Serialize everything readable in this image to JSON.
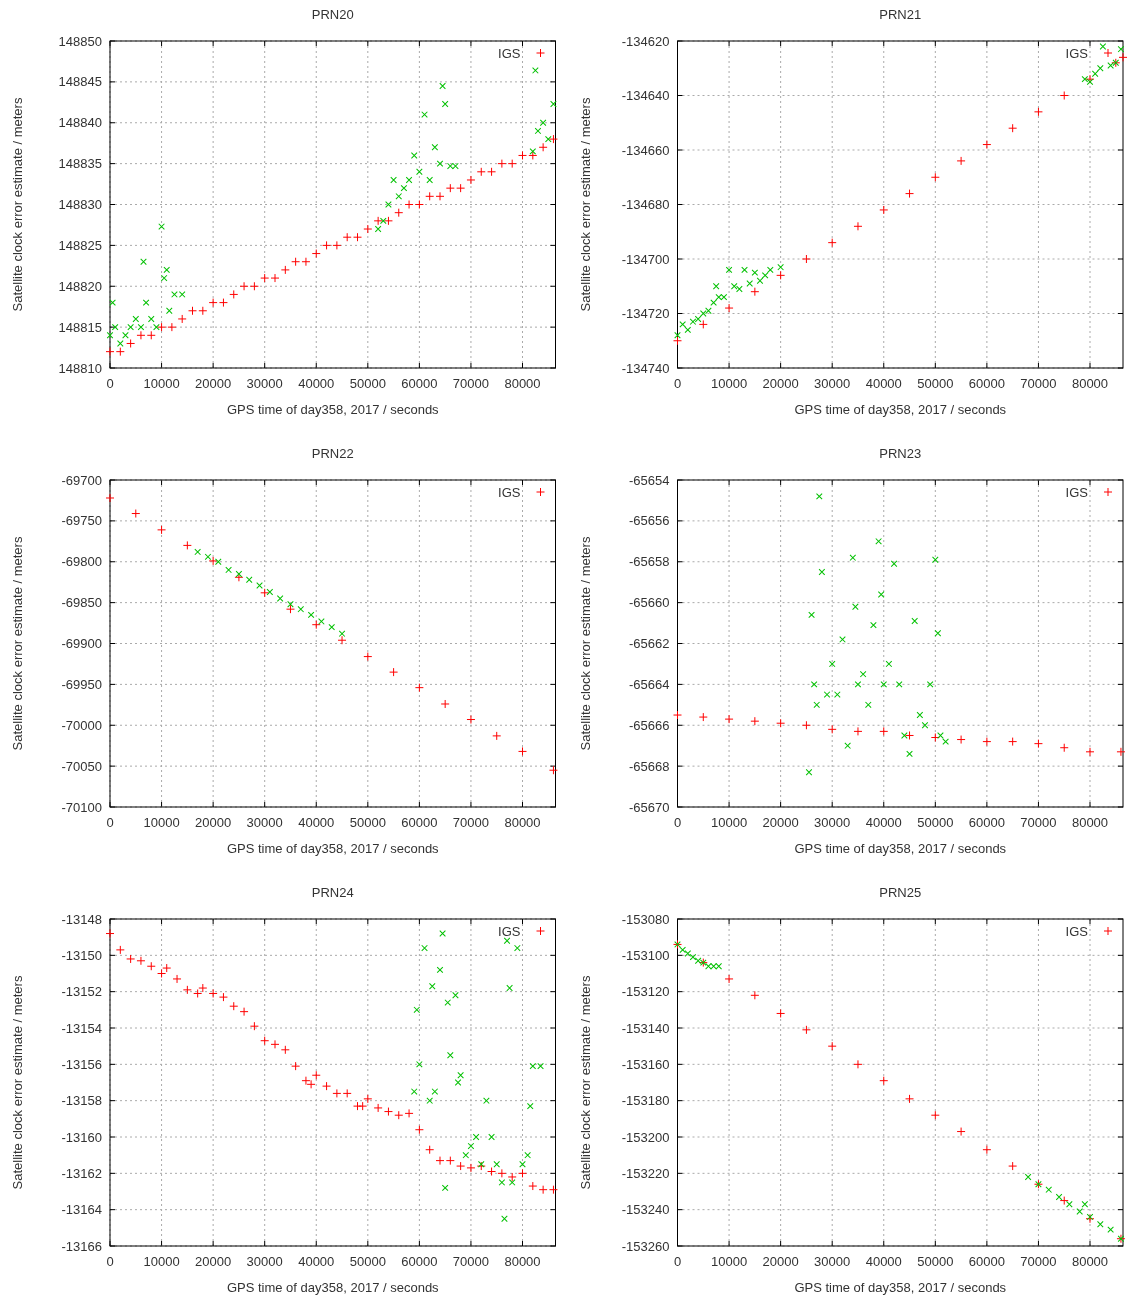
{
  "chart_data": [
    {
      "type": "scatter",
      "title": "PRN20",
      "xlabel": "GPS time of day358, 2017 / seconds",
      "ylabel": "Satellite clock error estimate / meters",
      "xlim": [
        0,
        86400
      ],
      "xticks": [
        0,
        10000,
        20000,
        30000,
        40000,
        50000,
        60000,
        70000,
        80000
      ],
      "ylim": [
        148810,
        148850
      ],
      "yticks": [
        148810,
        148815,
        148820,
        148825,
        148830,
        148835,
        148840,
        148845,
        148850
      ],
      "grid": true,
      "legend": "top right",
      "marker": "cross",
      "series": [
        {
          "name": "IGS",
          "color": "#ff0000",
          "x": [
            0,
            2000,
            4000,
            6000,
            8000,
            10000,
            12000,
            14000,
            16000,
            18000,
            20000,
            22000,
            24000,
            26000,
            28000,
            30000,
            32000,
            34000,
            36000,
            38000,
            40000,
            42000,
            44000,
            46000,
            48000,
            50000,
            52000,
            54000,
            56000,
            58000,
            60000,
            62000,
            64000,
            66000,
            68000,
            70000,
            72000,
            74000,
            76000,
            78000,
            80000,
            82000,
            84000,
            86000
          ],
          "values": [
            148812,
            148812,
            148813,
            148814,
            148814,
            148815,
            148815,
            148816,
            148817,
            148817,
            148818,
            148818,
            148819,
            148820,
            148820,
            148821,
            148821,
            148822,
            148823,
            148823,
            148824,
            148825,
            148825,
            148826,
            148826,
            148827,
            148828,
            148828,
            148829,
            148830,
            148830,
            148831,
            148831,
            148832,
            148832,
            148833,
            148834,
            148834,
            148835,
            148835,
            148836,
            148836,
            148837,
            148838
          ]
        },
        {
          "color": "#00c000",
          "x": [
            0,
            500,
            1000,
            2000,
            3000,
            4000,
            5000,
            6000,
            6500,
            7000,
            8000,
            9000,
            10000,
            10500,
            11000,
            11500,
            12500,
            14000,
            52000,
            53000,
            54000,
            55000,
            56000,
            57000,
            58000,
            59000,
            60000,
            61000,
            62000,
            63000,
            64000,
            64500,
            65000,
            66000,
            67000,
            82000,
            82500,
            83000,
            84000,
            85000,
            86000
          ],
          "values": [
            148814,
            148818,
            148815,
            148813,
            148814,
            148815,
            148816,
            148815,
            148823,
            148818,
            148816,
            148815,
            148827.3,
            148821,
            148822,
            148817,
            148819,
            148819,
            148827,
            148828,
            148830,
            148833,
            148831,
            148832,
            148833,
            148836,
            148834,
            148841,
            148833,
            148837,
            148835,
            148844.5,
            148842.3,
            148834.7,
            148834.7,
            148836.5,
            148846.4,
            148839,
            148840,
            148838,
            148842.3
          ]
        }
      ]
    },
    {
      "type": "scatter",
      "title": "PRN21",
      "xlabel": "GPS time of day358, 2017 / seconds",
      "ylabel": "Satellite clock error estimate / meters",
      "xlim": [
        0,
        86400
      ],
      "xticks": [
        0,
        10000,
        20000,
        30000,
        40000,
        50000,
        60000,
        70000,
        80000
      ],
      "ylim": [
        -134740,
        -134620
      ],
      "yticks": [
        -134740,
        -134720,
        -134700,
        -134680,
        -134660,
        -134640,
        -134620
      ],
      "grid": true,
      "legend": "top right",
      "marker": "cross",
      "series": [
        {
          "name": "IGS",
          "color": "#ff0000",
          "x": [
            0,
            5000,
            10000,
            15000,
            20000,
            25000,
            30000,
            35000,
            40000,
            45000,
            50000,
            55000,
            60000,
            65000,
            70000,
            75000,
            80000,
            85000,
            86400
          ],
          "values": [
            -134730,
            -134724,
            -134718,
            -134712,
            -134706,
            -134700,
            -134694,
            -134688,
            -134682,
            -134676,
            -134670,
            -134664,
            -134658,
            -134652,
            -134646,
            -134640,
            -134634,
            -134628,
            -134626
          ]
        },
        {
          "color": "#00c000",
          "x": [
            0,
            1000,
            2000,
            3000,
            4000,
            5000,
            6000,
            7000,
            7500,
            8000,
            9000,
            10000,
            11000,
            12000,
            13000,
            14000,
            15000,
            16000,
            17000,
            18000,
            20000,
            79000,
            80000,
            81000,
            82000,
            82500,
            84000,
            85000,
            86000
          ],
          "values": [
            -134728,
            -134724,
            -134726,
            -134723,
            -134722,
            -134720,
            -134719,
            -134716,
            -134710,
            -134714,
            -134714,
            -134704,
            -134710,
            -134711,
            -134704,
            -134709,
            -134705,
            -134708,
            -134706,
            -134704,
            -134703,
            -134634,
            -134635,
            -134632,
            -134630,
            -134622,
            -134629,
            -134628,
            -134623
          ]
        }
      ]
    },
    {
      "type": "scatter",
      "title": "PRN22",
      "xlabel": "GPS time of day358, 2017 / seconds",
      "ylabel": "Satellite clock error estimate / meters",
      "xlim": [
        0,
        86400
      ],
      "xticks": [
        0,
        10000,
        20000,
        30000,
        40000,
        50000,
        60000,
        70000,
        80000
      ],
      "ylim": [
        -70100,
        -69700
      ],
      "yticks": [
        -70100,
        -70050,
        -70000,
        -69950,
        -69900,
        -69850,
        -69800,
        -69750,
        -69700
      ],
      "grid": true,
      "legend": "top right",
      "marker": "cross",
      "series": [
        {
          "name": "IGS",
          "color": "#ff0000",
          "x": [
            0,
            5000,
            10000,
            15000,
            20000,
            25000,
            30000,
            35000,
            40000,
            45000,
            50000,
            55000,
            60000,
            65000,
            70000,
            75000,
            80000,
            86000
          ],
          "values": [
            -69722,
            -69741,
            -69761,
            -69780,
            -69799,
            -69819,
            -69838,
            -69858,
            -69877,
            -69896,
            -69916,
            -69935,
            -69954,
            -69974,
            -69993,
            -70013,
            -70032,
            -70055
          ]
        },
        {
          "color": "#00c000",
          "x": [
            17000,
            19000,
            21000,
            23000,
            25000,
            27000,
            29000,
            31000,
            33000,
            35000,
            37000,
            39000,
            41000,
            43000,
            45000
          ],
          "values": [
            -69788,
            -69794,
            -69800,
            -69810,
            -69815,
            -69822,
            -69829,
            -69837,
            -69845,
            -69852,
            -69858,
            -69865,
            -69873,
            -69880,
            -69888
          ]
        }
      ]
    },
    {
      "type": "scatter",
      "title": "PRN23",
      "xlabel": "GPS time of day358, 2017 / seconds",
      "ylabel": "Satellite clock error estimate / meters",
      "xlim": [
        0,
        86400
      ],
      "xticks": [
        0,
        10000,
        20000,
        30000,
        40000,
        50000,
        60000,
        70000,
        80000
      ],
      "ylim": [
        -65670,
        -65654
      ],
      "yticks": [
        -65670,
        -65668,
        -65666,
        -65664,
        -65662,
        -65660,
        -65658,
        -65656,
        -65654
      ],
      "grid": true,
      "legend": "top right",
      "marker": "cross",
      "series": [
        {
          "name": "IGS",
          "color": "#ff0000",
          "x": [
            0,
            5000,
            10000,
            15000,
            20000,
            25000,
            30000,
            35000,
            40000,
            45000,
            50000,
            55000,
            60000,
            65000,
            70000,
            75000,
            80000,
            86000
          ],
          "values": [
            -65665.5,
            -65665.6,
            -65665.7,
            -65665.8,
            -65665.9,
            -65666,
            -65666.2,
            -65666.3,
            -65666.3,
            -65666.5,
            -65666.6,
            -65666.7,
            -65666.8,
            -65666.8,
            -65666.9,
            -65667.1,
            -65667.3,
            -65667.3
          ]
        },
        {
          "color": "#00c000",
          "x": [
            25500,
            26000,
            26500,
            27000,
            27500,
            28000,
            29000,
            30000,
            31000,
            32000,
            33000,
            34000,
            34500,
            35000,
            36000,
            37000,
            38000,
            39000,
            39500,
            40000,
            41000,
            42000,
            43000,
            44000,
            45000,
            46000,
            47000,
            48000,
            49000,
            50000,
            50500,
            51000,
            52000
          ],
          "values": [
            -65668.3,
            -65660.6,
            -65664,
            -65665,
            -65654.8,
            -65658.5,
            -65664.5,
            -65663,
            -65664.5,
            -65661.8,
            -65667,
            -65657.8,
            -65660.2,
            -65664,
            -65663.5,
            -65665,
            -65661.1,
            -65657,
            -65659.6,
            -65664,
            -65663,
            -65658.1,
            -65664,
            -65666.5,
            -65667.4,
            -65660.9,
            -65665.5,
            -65666,
            -65664,
            -65657.9,
            -65661.5,
            -65666.5,
            -65666.8
          ]
        }
      ]
    },
    {
      "type": "scatter",
      "title": "PRN24",
      "xlabel": "GPS time of day358, 2017 / seconds",
      "ylabel": "Satellite clock error estimate / meters",
      "xlim": [
        0,
        86400
      ],
      "xticks": [
        0,
        10000,
        20000,
        30000,
        40000,
        50000,
        60000,
        70000,
        80000
      ],
      "ylim": [
        -13166,
        -13148
      ],
      "yticks": [
        -13166,
        -13164,
        -13162,
        -13160,
        -13158,
        -13156,
        -13154,
        -13152,
        -13150,
        -13148
      ],
      "grid": true,
      "legend": "top right",
      "marker": "cross",
      "series": [
        {
          "name": "IGS",
          "color": "#ff0000",
          "x": [
            0,
            2000,
            4000,
            6000,
            8000,
            10000,
            11000,
            13000,
            15000,
            17000,
            18000,
            20000,
            22000,
            24000,
            26000,
            28000,
            30000,
            32000,
            34000,
            36000,
            38000,
            39000,
            40000,
            42000,
            44000,
            46000,
            48000,
            49000,
            50000,
            52000,
            54000,
            56000,
            58000,
            60000,
            62000,
            64000,
            66000,
            68000,
            70000,
            72000,
            74000,
            76000,
            78000,
            80000,
            82000,
            84000,
            86000
          ],
          "values": [
            -13148.8,
            -13149.7,
            -13150.2,
            -13150.3,
            -13150.6,
            -13151,
            -13150.7,
            -13151.3,
            -13151.9,
            -13152.1,
            -13151.8,
            -13152.1,
            -13152.3,
            -13152.8,
            -13153.1,
            -13153.9,
            -13154.7,
            -13154.9,
            -13155.2,
            -13156.1,
            -13156.9,
            -13157.1,
            -13156.6,
            -13157.2,
            -13157.6,
            -13157.6,
            -13158.3,
            -13158.3,
            -13157.9,
            -13158.4,
            -13158.6,
            -13158.8,
            -13158.7,
            -13159.6,
            -13160.7,
            -13161.3,
            -13161.3,
            -13161.6,
            -13161.7,
            -13161.6,
            -13161.9,
            -13162,
            -13162.2,
            -13162,
            -13162.7,
            -13162.9,
            -13162.9
          ]
        },
        {
          "color": "#00c000",
          "x": [
            59000,
            59500,
            60000,
            61000,
            62000,
            62500,
            63000,
            64000,
            64500,
            65000,
            65500,
            66000,
            67000,
            67500,
            68000,
            69000,
            70000,
            71000,
            72000,
            73000,
            74000,
            75000,
            76000,
            76500,
            77000,
            77500,
            78000,
            79000,
            80000,
            81000,
            81500,
            82000,
            83500
          ],
          "values": [
            -13157.5,
            -13153,
            -13156,
            -13149.6,
            -13158,
            -13151.7,
            -13157.5,
            -13150.8,
            -13148.8,
            -13162.8,
            -13152.6,
            -13155.5,
            -13152.2,
            -13157,
            -13156.6,
            -13161,
            -13160.5,
            -13160,
            -13161.5,
            -13158,
            -13160,
            -13161.5,
            -13162.5,
            -13164.5,
            -13149.2,
            -13151.8,
            -13162.5,
            -13149.6,
            -13161.5,
            -13161,
            -13158.3,
            -13156.1,
            -13156.1
          ]
        }
      ]
    },
    {
      "type": "scatter",
      "title": "PRN25",
      "xlabel": "GPS time of day358, 2017 / seconds",
      "ylabel": "Satellite clock error estimate / meters",
      "xlim": [
        0,
        86400
      ],
      "xticks": [
        0,
        10000,
        20000,
        30000,
        40000,
        50000,
        60000,
        70000,
        80000
      ],
      "ylim": [
        -153260,
        -153080
      ],
      "yticks": [
        -153260,
        -153240,
        -153220,
        -153200,
        -153180,
        -153160,
        -153140,
        -153120,
        -153100,
        -153080
      ],
      "grid": true,
      "legend": "top right",
      "marker": "cross",
      "series": [
        {
          "name": "IGS",
          "color": "#ff0000",
          "x": [
            0,
            5000,
            10000,
            15000,
            20000,
            25000,
            30000,
            35000,
            40000,
            45000,
            50000,
            55000,
            60000,
            65000,
            70000,
            75000,
            80000,
            86000
          ],
          "values": [
            -153094,
            -153104,
            -153113,
            -153122,
            -153132,
            -153141,
            -153150,
            -153160,
            -153169,
            -153179,
            -153188,
            -153197,
            -153207,
            -153216,
            -153226,
            -153235,
            -153245,
            -153256
          ]
        },
        {
          "color": "#00c000",
          "x": [
            0,
            1000,
            2000,
            3000,
            4000,
            5000,
            6000,
            7000,
            8000,
            68000,
            70000,
            72000,
            74000,
            76000,
            78000,
            79000,
            80000,
            82000,
            84000,
            86000
          ],
          "values": [
            -153094,
            -153097,
            -153099,
            -153101,
            -153103,
            -153104,
            -153106,
            -153106,
            -153106,
            -153222,
            -153226,
            -153229,
            -153233,
            -153237,
            -153241,
            -153237,
            -153244,
            -153248,
            -153251,
            -153256
          ]
        }
      ]
    }
  ]
}
